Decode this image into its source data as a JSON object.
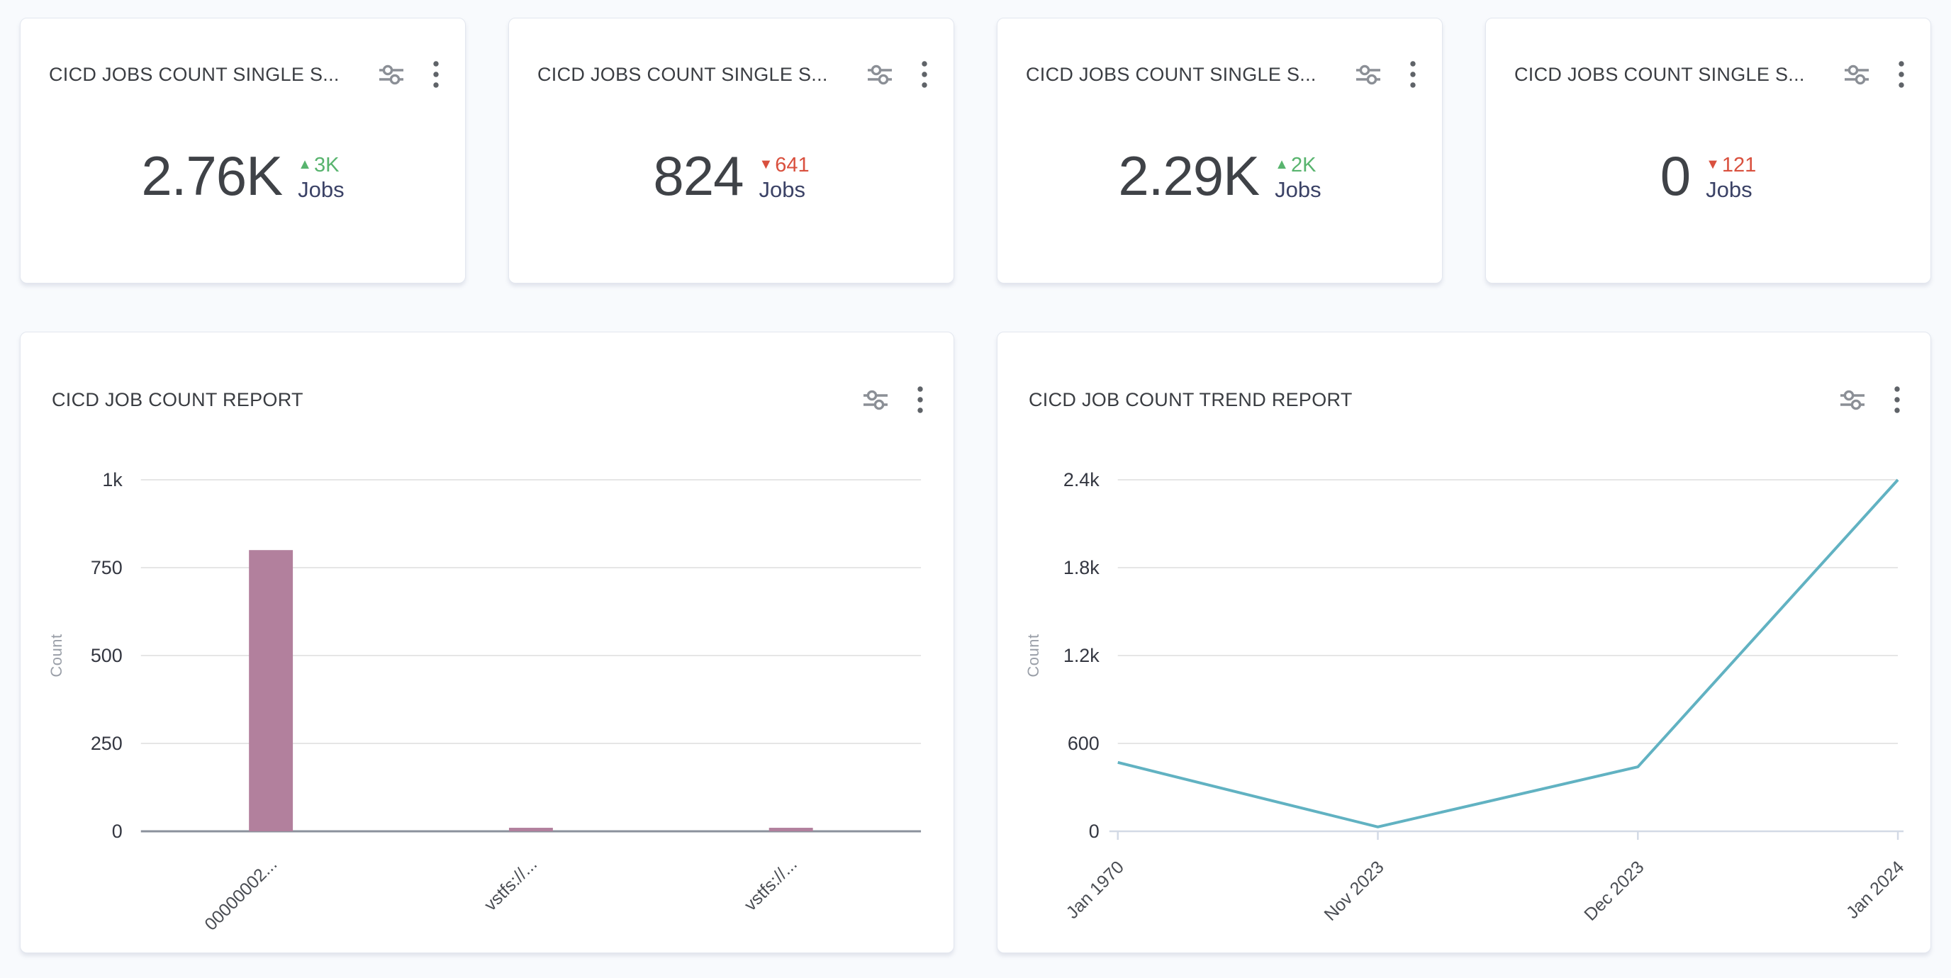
{
  "kpi_cards": [
    {
      "title": "CICD JOBS COUNT SINGLE S...",
      "value": "2.76K",
      "delta": "3K",
      "delta_direction": "up",
      "delta_icon": "▲",
      "unit": "Jobs"
    },
    {
      "title": "CICD JOBS COUNT SINGLE S...",
      "value": "824",
      "delta": "641",
      "delta_direction": "down",
      "delta_icon": "▼",
      "unit": "Jobs"
    },
    {
      "title": "CICD JOBS COUNT SINGLE S...",
      "value": "2.29K",
      "delta": "2K",
      "delta_direction": "up",
      "delta_icon": "▲",
      "unit": "Jobs"
    },
    {
      "title": "CICD JOBS COUNT SINGLE S...",
      "value": "0",
      "delta": "121",
      "delta_direction": "down",
      "delta_icon": "▼",
      "unit": "Jobs"
    }
  ],
  "colors": {
    "trend_up": "#58b46e",
    "trend_down": "#d9503e",
    "unit_label": "#3b4266",
    "bar_fill": "#b2809d",
    "line_stroke": "#61b2c2",
    "gridline": "#e6e6e6",
    "bar_baseline": "#8b919c",
    "line_axis": "#d3dae6"
  },
  "chart_data": [
    {
      "type": "bar",
      "title": "CICD JOB COUNT REPORT",
      "xlabel": "",
      "ylabel": "Count",
      "categories": [
        "00000002...",
        "vstfs://...",
        "vstfs://..."
      ],
      "values": [
        800,
        10,
        10
      ],
      "ylim": [
        0,
        1000
      ],
      "ytick_values": [
        0,
        250,
        500,
        750,
        1000
      ],
      "ytick_labels": [
        "0",
        "250",
        "500",
        "750",
        "1k"
      ],
      "xtick_rotation": -45,
      "grid": true,
      "legend": "none"
    },
    {
      "type": "line",
      "title": "CICD JOB COUNT TREND REPORT",
      "xlabel": "",
      "ylabel": "Count",
      "categories": [
        "Jan 1970",
        "Nov 2023",
        "Dec 2023",
        "Jan 2024"
      ],
      "values": [
        470,
        30,
        440,
        2400
      ],
      "ylim": [
        0,
        2400
      ],
      "ytick_values": [
        0,
        600,
        1200,
        1800,
        2400
      ],
      "ytick_labels": [
        "0",
        "600",
        "1.2k",
        "1.8k",
        "2.4k"
      ],
      "xtick_rotation": -45,
      "grid": true,
      "legend": "none"
    }
  ]
}
